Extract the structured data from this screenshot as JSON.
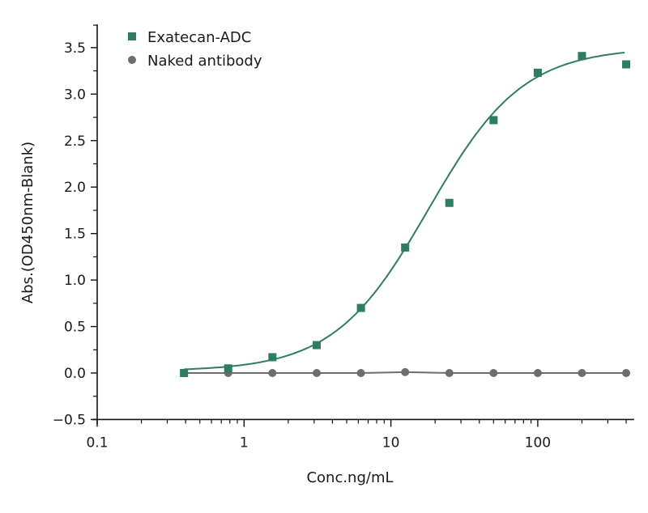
{
  "chart_data": {
    "type": "scatter",
    "title": "",
    "xlabel": "Conc.ng/mL",
    "ylabel": "Abs.(OD450nm-Blank)",
    "xscale": "log",
    "xlim": [
      0.1,
      453
    ],
    "ylim": [
      -0.5,
      3.75
    ],
    "x_ticks": [
      0.1,
      1,
      10,
      100
    ],
    "x_tick_labels": [
      "0.1",
      "1",
      "10",
      "100"
    ],
    "y_ticks": [
      -0.5,
      0.0,
      0.5,
      1.0,
      1.5,
      2.0,
      2.5,
      3.0,
      3.5
    ],
    "y_tick_labels": [
      "−0.5",
      "0.0",
      "0.5",
      "1.0",
      "1.5",
      "2.0",
      "2.5",
      "3.0",
      "3.5"
    ],
    "grid": false,
    "legend_position": "upper left",
    "x": [
      0.39,
      0.78,
      1.56,
      3.125,
      6.25,
      12.5,
      25,
      50,
      100,
      200,
      400
    ],
    "series": [
      {
        "name": "Exatecan-ADC",
        "marker": "square",
        "color": "#2e7d63",
        "values": [
          0.0,
          0.05,
          0.17,
          0.3,
          0.7,
          1.35,
          1.83,
          2.72,
          3.23,
          3.41,
          3.32
        ],
        "fit": "4PL sigmoid"
      },
      {
        "name": "Naked antibody",
        "marker": "circle",
        "color": "#6d6d6d",
        "values": [
          0.0,
          0.0,
          0.0,
          0.0,
          0.0,
          0.01,
          0.0,
          0.0,
          0.0,
          0.0,
          0.0
        ],
        "fit": "line"
      }
    ]
  }
}
